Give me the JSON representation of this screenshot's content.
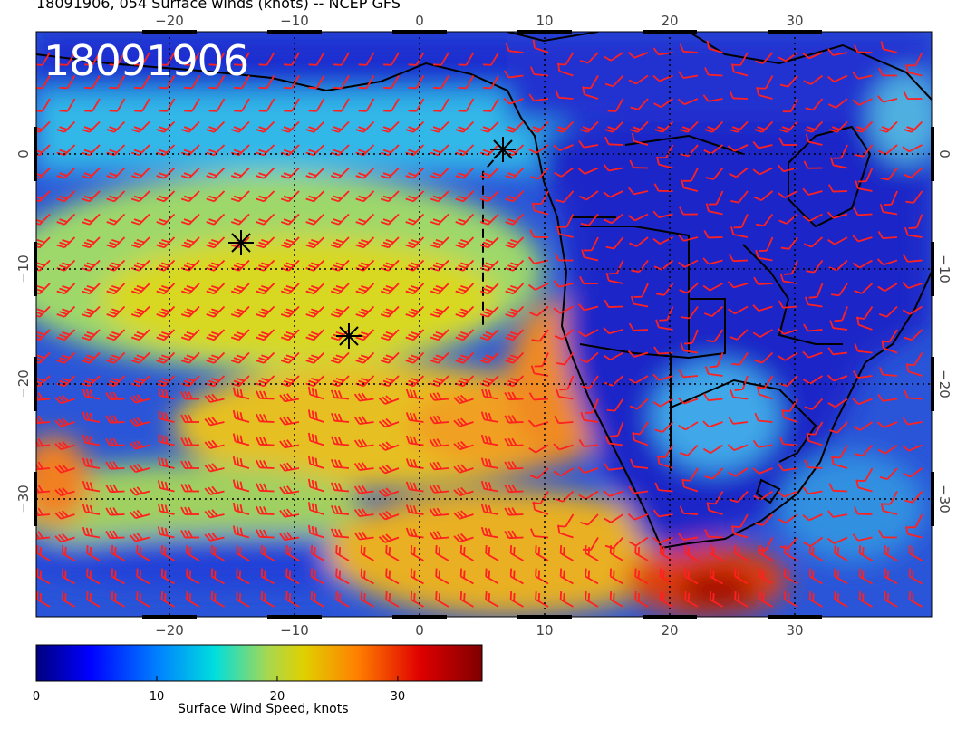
{
  "header": {
    "title": "18091906, 054 Surface winds (knots) -- NCEP GFS",
    "run_label": "18091906"
  },
  "map": {
    "longitude_ticks": [
      "-20",
      "-10",
      "0",
      "10",
      "20",
      "30"
    ],
    "latitude_ticks": [
      "0",
      "-10",
      "-20",
      "-30"
    ],
    "wind_barb_color": "#ff2020",
    "coast_color": "#000000"
  },
  "colorbar": {
    "title": "Surface Wind Speed, knots",
    "tick_labels": [
      "0",
      "10",
      "20",
      "30"
    ],
    "min": 0,
    "max": 37,
    "colors": [
      "#00007f",
      "#0000ff",
      "#007fff",
      "#00dede",
      "#a8d850",
      "#e0d000",
      "#ff8000",
      "#e00000",
      "#7f0000"
    ]
  }
}
